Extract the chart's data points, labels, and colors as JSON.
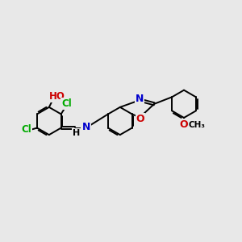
{
  "bg_color": "#e8e8e8",
  "bond_color": "#000000",
  "bond_lw": 1.4,
  "green": "#00aa00",
  "red": "#cc0000",
  "blue": "#0000cc",
  "black": "#000000",
  "xlim": [
    -1.0,
    11.5
  ],
  "ylim": [
    -0.5,
    5.5
  ]
}
